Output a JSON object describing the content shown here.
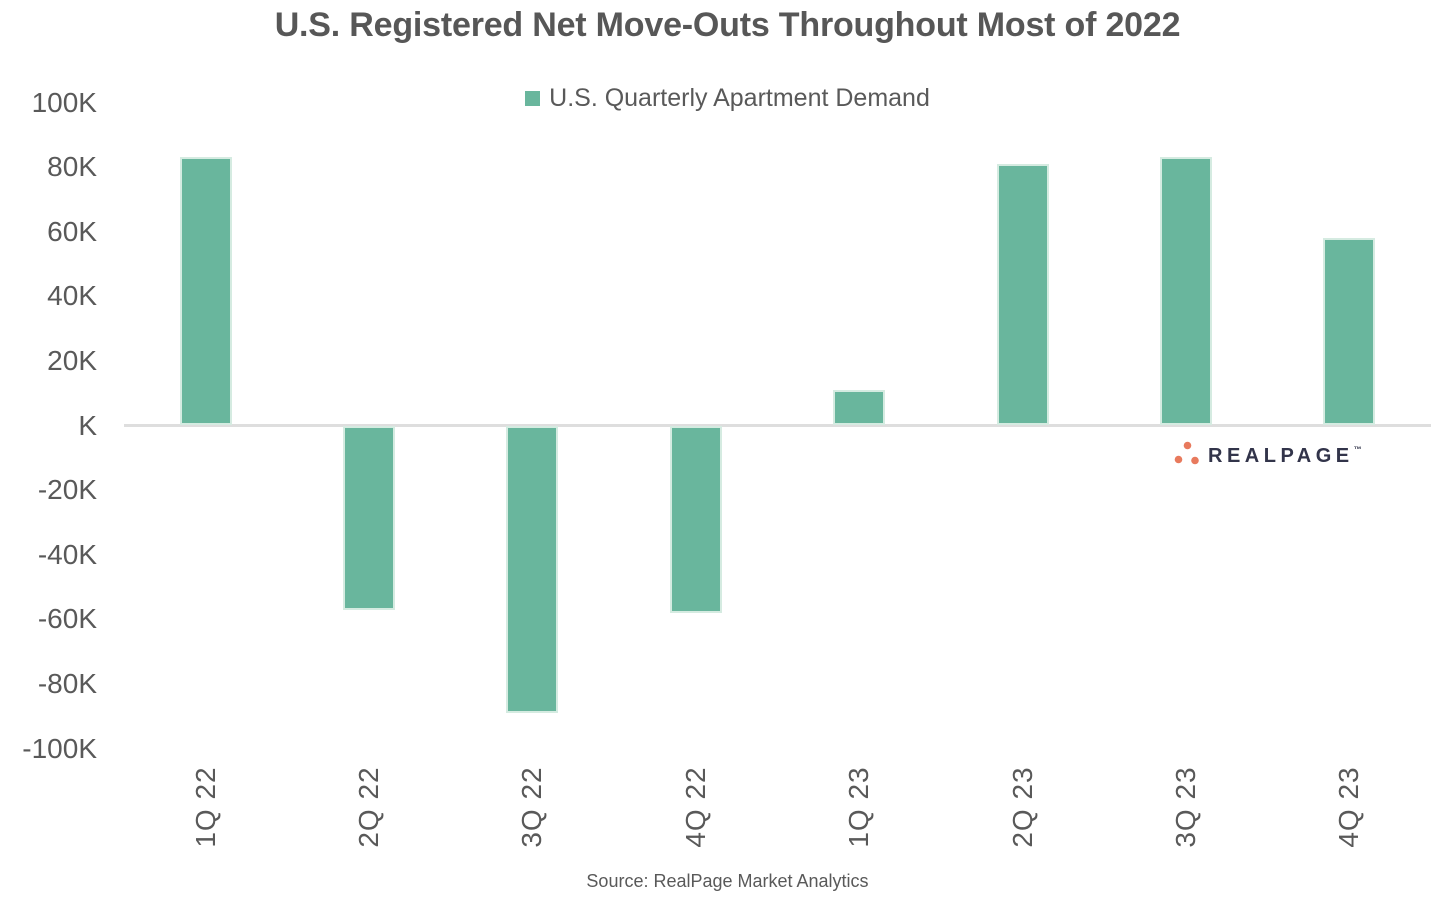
{
  "title": "U.S. Registered Net Move-Outs Throughout Most of 2022",
  "legend": {
    "label": "U.S. Quarterly Apartment Demand"
  },
  "source_note": "Source: RealPage Market Analytics",
  "logo": {
    "text": "REALPAGE",
    "trademark": "™"
  },
  "colors": {
    "bar_fill": "#69B69D",
    "bar_edge": "#D5EBE1",
    "axis_line": "#DEDEDE",
    "label_text": "#595959",
    "logo_text": "#32344A",
    "logo_dots": "#E87A5D"
  },
  "chart_data": {
    "type": "bar",
    "title": "U.S. Registered Net Move-Outs Throughout Most of 2022",
    "series_name": "U.S. Quarterly Apartment Demand",
    "categories": [
      "1Q 22",
      "2Q 22",
      "3Q 22",
      "4Q 22",
      "1Q 23",
      "2Q 23",
      "3Q 23",
      "4Q 23"
    ],
    "values": [
      83000,
      -57000,
      -89000,
      -58000,
      11000,
      81000,
      83000,
      58000
    ],
    "xlabel": "",
    "ylabel": "",
    "ylim": [
      -100000,
      100000
    ],
    "ytick_step": 20000,
    "ytick_labels": [
      "100K",
      "80K",
      "60K",
      "40K",
      "20K",
      "K",
      "-20K",
      "-40K",
      "-60K",
      "-80K",
      "-100K"
    ],
    "grid": false,
    "legend_position": "top-center",
    "bar_color": "#69B69D",
    "zero_axis_line": true
  }
}
